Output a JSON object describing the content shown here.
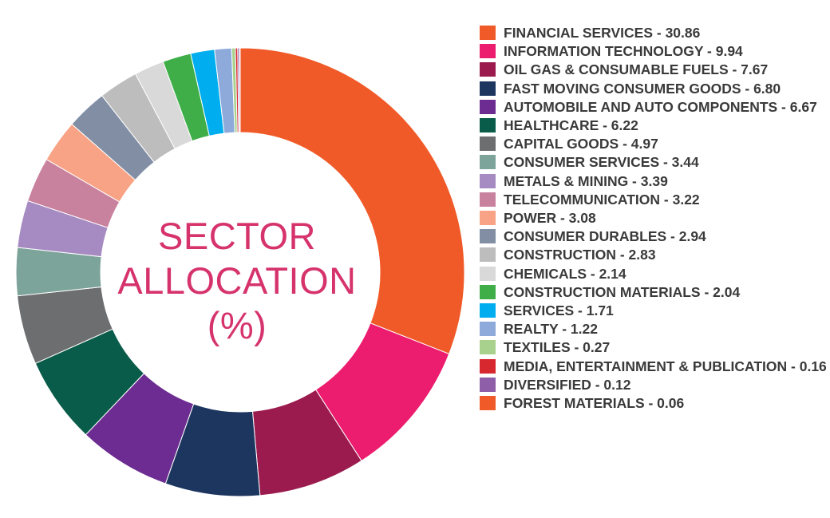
{
  "chart_data": {
    "type": "pie",
    "title_lines": [
      "SECTOR",
      "ALLOCATION",
      "(%)"
    ],
    "slices": [
      {
        "label": "FINANCIAL SERVICES",
        "display": "FINANCIAL SERVICES - 30.86",
        "value": 30.86,
        "color": "#f05a28"
      },
      {
        "label": "INFORMATION TECHNOLOGY",
        "display": "INFORMATION TECHNOLOGY - 9.94",
        "value": 9.94,
        "color": "#ec1c6e"
      },
      {
        "label": "OIL GAS & CONSUMABLE FUELS",
        "display": "OIL GAS & CONSUMABLE FUELS - 7.67",
        "value": 7.67,
        "color": "#9b1b4e"
      },
      {
        "label": "FAST MOVING CONSUMER GOODS",
        "display": "FAST MOVING CONSUMER GOODS - 6.80",
        "value": 6.8,
        "color": "#1d3660"
      },
      {
        "label": "AUTOMOBILE AND AUTO COMPONENTS",
        "display": "AUTOMOBILE AND AUTO COMPONENTS - 6.67",
        "value": 6.67,
        "color": "#6c2c91"
      },
      {
        "label": "HEALTHCARE",
        "display": "HEALTHCARE - 6.22",
        "value": 6.22,
        "color": "#0a5c4a"
      },
      {
        "label": "CAPITAL GOODS",
        "display": "CAPITAL GOODS - 4.97",
        "value": 4.97,
        "color": "#6d6e70"
      },
      {
        "label": "CONSUMER SERVICES",
        "display": "CONSUMER SERVICES - 3.44",
        "value": 3.44,
        "color": "#7da49a"
      },
      {
        "label": "METALS & MINING",
        "display": "METALS & MINING - 3.39",
        "value": 3.39,
        "color": "#a68bc2"
      },
      {
        "label": "TELECOMMUNICATION",
        "display": "TELECOMMUNICATION - 3.22",
        "value": 3.22,
        "color": "#c9829e"
      },
      {
        "label": "POWER",
        "display": "POWER - 3.08",
        "value": 3.08,
        "color": "#f8a385"
      },
      {
        "label": "CONSUMER DURABLES",
        "display": "CONSUMER DURABLES - 2.94",
        "value": 2.94,
        "color": "#818ea3"
      },
      {
        "label": "CONSTRUCTION",
        "display": "CONSTRUCTION - 2.83",
        "value": 2.83,
        "color": "#bdbdbd"
      },
      {
        "label": "CHEMICALS",
        "display": "CHEMICALS - 2.14",
        "value": 2.14,
        "color": "#d9d9d9"
      },
      {
        "label": "CONSTRUCTION MATERIALS",
        "display": "CONSTRUCTION MATERIALS - 2.04",
        "value": 2.04,
        "color": "#3fae49"
      },
      {
        "label": "SERVICES",
        "display": "SERVICES - 1.71",
        "value": 1.71,
        "color": "#00aeef"
      },
      {
        "label": "REALTY",
        "display": "REALTY - 1.22",
        "value": 1.22,
        "color": "#8eaadb"
      },
      {
        "label": "TEXTILES",
        "display": "TEXTILES - 0.27",
        "value": 0.27,
        "color": "#a9d18e"
      },
      {
        "label": "MEDIA, ENTERTAINMENT & PUBLICATION",
        "display": "MEDIA, ENTERTAINMENT & PUBLICATION - 0.16",
        "value": 0.16,
        "color": "#d7282f"
      },
      {
        "label": "DIVERSIFIED",
        "display": "DIVERSIFIED - 0.12",
        "value": 0.12,
        "color": "#8e5ea8"
      },
      {
        "label": "FOREST MATERIALS",
        "display": "FOREST MATERIALS - 0.06",
        "value": 0.06,
        "color": "#f05a28"
      }
    ],
    "legend_position": "right"
  }
}
